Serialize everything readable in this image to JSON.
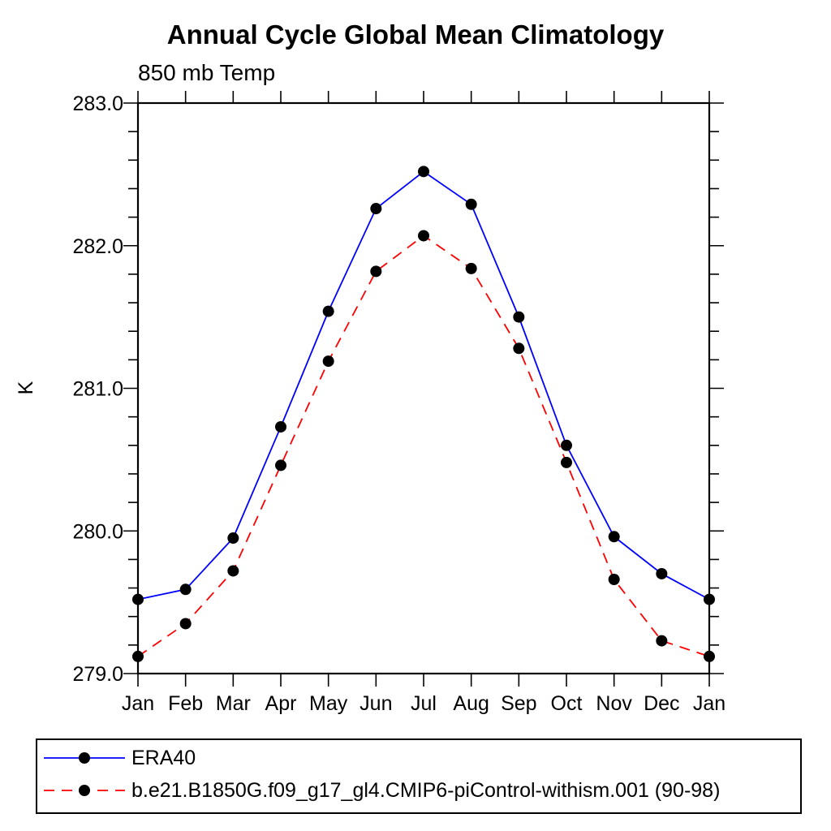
{
  "chart_data": {
    "type": "line",
    "title": "Annual Cycle Global Mean Climatology",
    "subtitle": "850 mb Temp",
    "ylabel": "K",
    "xlabel": "",
    "categories": [
      "Jan",
      "Feb",
      "Mar",
      "Apr",
      "May",
      "Jun",
      "Jul",
      "Aug",
      "Sep",
      "Oct",
      "Nov",
      "Dec",
      "Jan"
    ],
    "ylim": [
      279.0,
      283.0
    ],
    "ytick_values": [
      283.0,
      282.0,
      281.0,
      280.0,
      279.0
    ],
    "ytick_labels": [
      "283.0",
      "282.0",
      "281.0",
      "280.0",
      "279.0"
    ],
    "ytick_minor_step": 0.2,
    "grid": false,
    "legend_position": "bottom-left",
    "axis_color": "#000000",
    "background_color": "#ffffff",
    "series": [
      {
        "name": "ERA40",
        "color": "#0000ff",
        "line_style": "solid",
        "marker": "filled-circle",
        "marker_color": "#000000",
        "values": [
          279.52,
          279.59,
          279.95,
          280.73,
          281.54,
          282.26,
          282.52,
          282.29,
          281.5,
          280.6,
          279.96,
          279.7,
          279.52
        ]
      },
      {
        "name": "b.e21.B1850G.f09_g17_gl4.CMIP6-piControl-withism.001 (90-98)",
        "color": "#ff0000",
        "line_style": "dashed",
        "marker": "filled-circle",
        "marker_color": "#000000",
        "values": [
          279.12,
          279.35,
          279.72,
          280.46,
          281.19,
          281.82,
          282.07,
          281.84,
          281.28,
          280.48,
          279.66,
          279.23,
          279.12
        ]
      }
    ]
  }
}
